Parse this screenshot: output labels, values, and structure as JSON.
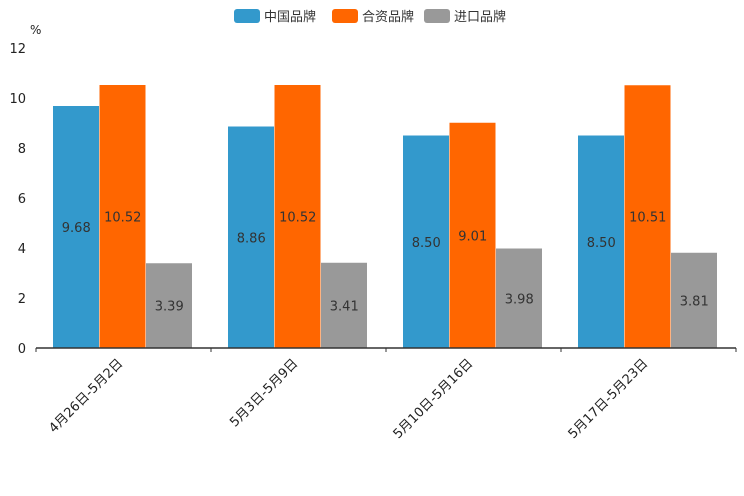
{
  "chart_data": {
    "type": "bar",
    "title": "",
    "ylabel": "%",
    "xlabel": "",
    "ylim": [
      0,
      12
    ],
    "yticks": [
      0,
      2,
      4,
      6,
      8,
      10,
      12
    ],
    "legend_position": "top-center",
    "categories": [
      "4月26日-5月2日",
      "5月3日-5月9日",
      "5月10日-5月16日",
      "5月17日-5月23日"
    ],
    "series": [
      {
        "name": "中国品牌",
        "color": "#3399cc",
        "values": [
          9.68,
          8.86,
          8.5,
          8.5
        ],
        "labels": [
          "9.68",
          "8.86",
          "8.50",
          "8.50"
        ]
      },
      {
        "name": "合资品牌",
        "color": "#ff6600",
        "values": [
          10.52,
          10.52,
          9.01,
          10.51
        ],
        "labels": [
          "10.52",
          "10.52",
          "9.01",
          "10.51"
        ]
      },
      {
        "name": "进口品牌",
        "color": "#999999",
        "values": [
          3.39,
          3.41,
          3.98,
          3.81
        ],
        "labels": [
          "3.39",
          "3.41",
          "3.98",
          "3.81"
        ]
      }
    ]
  }
}
